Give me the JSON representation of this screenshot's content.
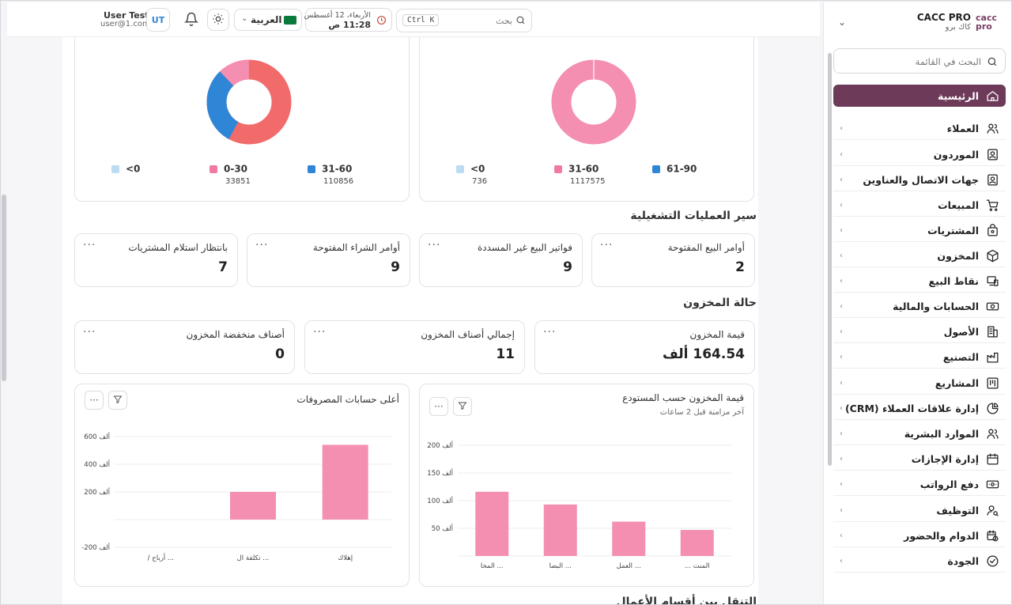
{
  "header": {
    "user_name": "User Test",
    "user_email": "user@1.com",
    "avatar_initials": "UT",
    "language": "العربية",
    "date": "الأربعاء، 12 أغسطس",
    "time": "11:28 ص",
    "search_placeholder": "بحث",
    "shortcut": "Ctrl K"
  },
  "brand": {
    "name": "CACC PRO",
    "subtitle": "كاك برو",
    "logo_top": "cacc",
    "logo_bottom": "pro"
  },
  "sidebar": {
    "search_placeholder": "البحث في القائمة",
    "items": [
      {
        "label": "الرئيسية",
        "icon": "home-icon",
        "active": true
      },
      {
        "label": "العملاء",
        "icon": "users-icon"
      },
      {
        "label": "الموردون",
        "icon": "contact-card-icon"
      },
      {
        "label": "جهات الاتصال والعناوين",
        "icon": "address-book-icon"
      },
      {
        "label": "المبيعات",
        "icon": "cart-icon"
      },
      {
        "label": "المشتريات",
        "icon": "bag-icon"
      },
      {
        "label": "المخزون",
        "icon": "box-icon"
      },
      {
        "label": "نقاط البيع",
        "icon": "pos-icon"
      },
      {
        "label": "الحسابات والمالية",
        "icon": "cash-icon"
      },
      {
        "label": "الأصول",
        "icon": "building-icon"
      },
      {
        "label": "التصنيع",
        "icon": "factory-icon"
      },
      {
        "label": "المشاريع",
        "icon": "kanban-icon"
      },
      {
        "label": "إدارة علاقات العملاء (CRM)",
        "icon": "pie-icon"
      },
      {
        "label": "الموارد البشرية",
        "icon": "people-icon"
      },
      {
        "label": "إدارة الإجازات",
        "icon": "calendar-icon"
      },
      {
        "label": "دفع الرواتب",
        "icon": "money-icon"
      },
      {
        "label": "التوظيف",
        "icon": "user-search-icon"
      },
      {
        "label": "الدوام والحضور",
        "icon": "calendar-clock-icon"
      },
      {
        "label": "الجودة",
        "icon": "check-circle-icon"
      }
    ]
  },
  "donut_left": {
    "legend": [
      {
        "label": "31-60",
        "value": "110856",
        "color": "#2f86d6"
      },
      {
        "label": "0-30",
        "value": "33851",
        "color": "#f07aa4"
      },
      {
        "label": "<0",
        "value": "",
        "color": "#bcdcf4"
      }
    ],
    "slices": [
      {
        "label": "31-60",
        "value": 110856,
        "color": "#2f86d6"
      },
      {
        "label": "0-30",
        "value": 33851,
        "color": "#f07aa4"
      }
    ],
    "colors": {
      "main": "#f26b6b",
      "second": "#2f86d6",
      "third": "#f48fb1"
    }
  },
  "donut_right": {
    "legend": [
      {
        "label": "61-90",
        "value": "",
        "color": "#2f86d6"
      },
      {
        "label": "31-60",
        "value": "1117575",
        "color": "#f07aa4"
      },
      {
        "label": "<0",
        "value": "736",
        "color": "#bcdcf4"
      }
    ],
    "color": "#f48fb1"
  },
  "operations": {
    "title": "سير العمليات التشغيلية",
    "cards": [
      {
        "label": "أوامر البيع المفتوحة",
        "value": "2"
      },
      {
        "label": "فواتير البيع غير المسددة",
        "value": "9"
      },
      {
        "label": "أوامر الشراء المفتوحة",
        "value": "9"
      },
      {
        "label": "بانتظار استلام المشتريات",
        "value": "7"
      }
    ]
  },
  "inventory": {
    "title": "حالة المخزون",
    "cards": [
      {
        "label": "قيمة المخزون",
        "value": "164.54 ألف"
      },
      {
        "label": "إجمالي أصناف المخزون",
        "value": "11"
      },
      {
        "label": "أصناف منخفضة المخزون",
        "value": "0"
      }
    ]
  },
  "chart_data": [
    {
      "type": "bar",
      "title": "قيمة المخزون حسب المستودع",
      "subtitle": "آخر مزامنة قبل 2 ساعات",
      "categories": [
        "... المنت",
        "العمل ...",
        "البضا ...",
        "المخا ..."
      ],
      "values": [
        47,
        62,
        93,
        116
      ],
      "ylim": [
        0,
        200
      ],
      "yticks": [
        50,
        100,
        150,
        200
      ],
      "ytick_labels": [
        "50 ألف",
        "100 ألف",
        "150 ألف",
        "200 ألف"
      ],
      "color": "#f48fb1"
    },
    {
      "type": "bar",
      "title": "أعلى حسابات المصروفات",
      "categories": [
        "إهلاك",
        "تكلفة ال ...",
        "/ أرباح ..."
      ],
      "values": [
        540,
        200,
        0
      ],
      "ylim": [
        -200,
        600
      ],
      "yticks": [
        -200,
        200,
        400,
        600
      ],
      "ytick_labels": [
        "-200 ألف",
        "200 ألف",
        "400 ألف",
        "600 ألف"
      ],
      "color": "#f48fb1"
    }
  ],
  "bottom_partial_title": "التنقل بين أقسام الأعمال"
}
